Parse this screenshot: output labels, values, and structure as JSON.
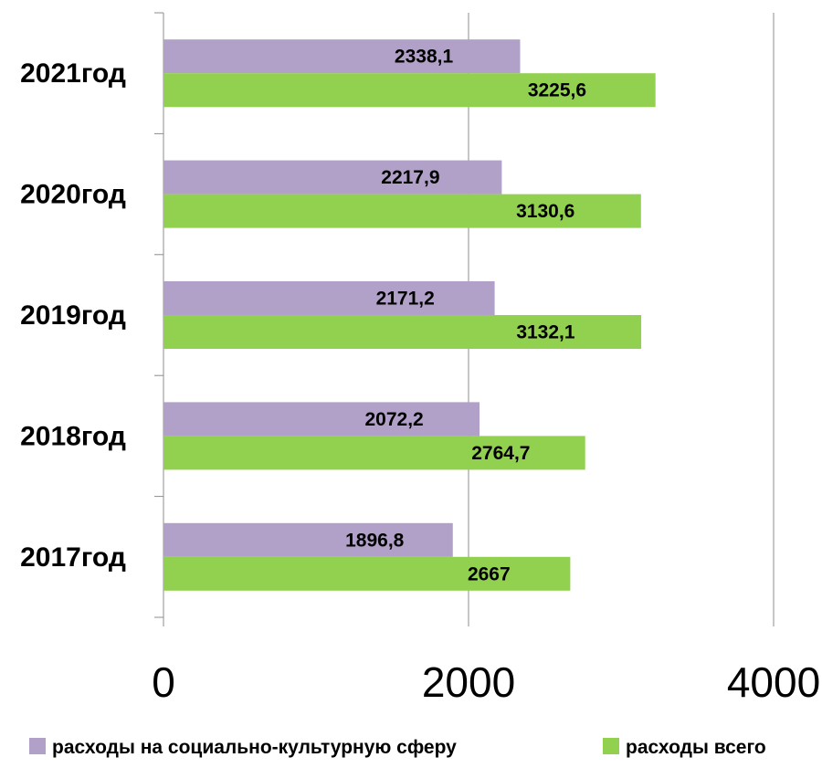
{
  "chart_data": {
    "type": "bar",
    "orientation": "horizontal",
    "categories": [
      "2017год",
      "2018год",
      "2019год",
      "2020год",
      "2021год"
    ],
    "series": [
      {
        "name": "расходы на социально-культурную сферу",
        "color": "#b1a0c7",
        "values": [
          1896.8,
          2072.2,
          2171.2,
          2217.9,
          2338.1
        ],
        "labels": [
          "1896,8",
          "2072,2",
          "2171,2",
          "2217,9",
          "2338,1"
        ]
      },
      {
        "name": "расходы всего",
        "color": "#92d050",
        "values": [
          2667,
          2764.7,
          3132.1,
          3130.6,
          3225.6
        ],
        "labels": [
          "2667",
          "2764,7",
          "3132,1",
          "3130,6",
          "3225,6"
        ]
      }
    ],
    "x_ticks": [
      "0",
      "2000",
      "4000"
    ],
    "xlim": [
      0,
      4000
    ],
    "grid": true,
    "legend_position": "bottom"
  }
}
